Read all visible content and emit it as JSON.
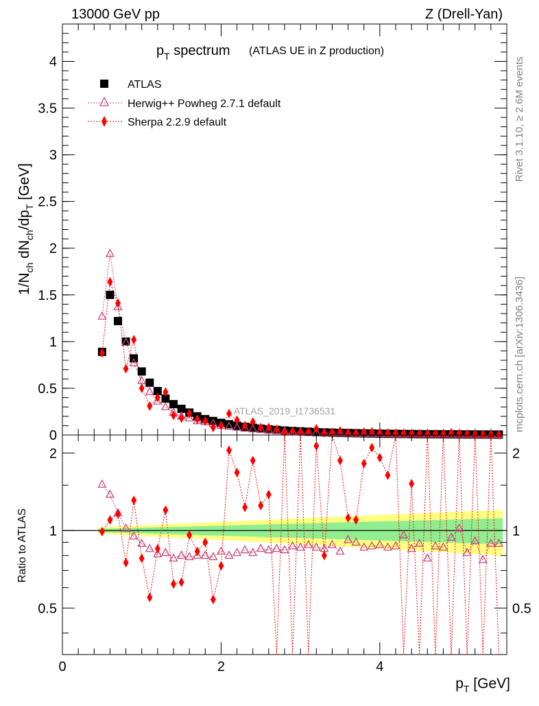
{
  "header": {
    "left": "13000 GeV pp",
    "right": "Z (Drell-Yan)"
  },
  "side_labels": {
    "rivet": "Rivet 3.1.10, ≥ 2.6M events",
    "mcplots": "mcplots.cern.ch [arXiv:1306.3436]"
  },
  "chart_data": [
    {
      "type": "scatter",
      "title_main": "p",
      "title_main_sub": "T",
      "title_main_rest": " spectrum",
      "title_paren": "(ATLAS UE in Z production)",
      "ylabel": "1/Nch dNch/dpT [GeV]",
      "ylim": [
        0,
        4.4
      ],
      "xlim": [
        0,
        5.6
      ],
      "yticks": [
        "0",
        "0.5",
        "1",
        "1.5",
        "2",
        "2.5",
        "3",
        "3.5",
        "4"
      ],
      "analysis_label": "ATLAS_2019_I1736531",
      "legend": [
        {
          "name": "ATLAS",
          "color": "#000000",
          "marker": "square"
        },
        {
          "name": "Herwig++ Powheg 2.7.1 default",
          "color": "#c8477a",
          "marker": "triangle"
        },
        {
          "name": "Sherpa 2.2.9 default",
          "color": "#ff0000",
          "marker": "diamond"
        }
      ],
      "x": [
        0.5,
        0.6,
        0.7,
        0.8,
        0.9,
        1.0,
        1.1,
        1.2,
        1.3,
        1.4,
        1.5,
        1.6,
        1.7,
        1.8,
        1.9,
        2.0,
        2.1,
        2.2,
        2.3,
        2.4,
        2.5,
        2.6,
        2.7,
        2.8,
        2.9,
        3.0,
        3.1,
        3.2,
        3.3,
        3.4,
        3.5,
        3.6,
        3.7,
        3.8,
        3.9,
        4.0,
        4.1,
        4.2,
        4.3,
        4.4,
        4.5,
        4.6,
        4.7,
        4.8,
        4.9,
        5.0,
        5.1,
        5.2,
        5.3,
        5.4,
        5.5
      ],
      "series": [
        {
          "name": "ATLAS",
          "values": [
            0.89,
            1.5,
            1.22,
            1.0,
            0.82,
            0.68,
            0.56,
            0.47,
            0.39,
            0.33,
            0.28,
            0.24,
            0.2,
            0.17,
            0.15,
            0.13,
            0.115,
            0.1,
            0.088,
            0.077,
            0.068,
            0.06,
            0.054,
            0.048,
            0.043,
            0.039,
            0.035,
            0.031,
            0.028,
            0.025,
            0.023,
            0.021,
            0.019,
            0.017,
            0.016,
            0.014,
            0.013,
            0.012,
            0.011,
            0.01,
            0.009,
            0.0085,
            0.008,
            0.0075,
            0.007,
            0.0065,
            0.006,
            0.0057,
            0.0054,
            0.0051,
            0.0048
          ]
        },
        {
          "name": "Herwig++ Powheg 2.7.1 default",
          "values": [
            1.27,
            1.94,
            1.37,
            0.99,
            0.77,
            0.58,
            0.46,
            0.36,
            0.3,
            0.24,
            0.2,
            0.18,
            0.15,
            0.14,
            0.12,
            0.1,
            0.09,
            0.08,
            0.07,
            0.063,
            0.057,
            0.05,
            0.045,
            0.04,
            0.037,
            0.034,
            0.03,
            0.027,
            0.024,
            0.022,
            0.02,
            0.019,
            0.017,
            0.015,
            0.014,
            0.012,
            0.011,
            0.01,
            0.0095,
            0.009,
            0.008,
            0.007,
            0.007,
            0.0066,
            0.006,
            0.006,
            0.005,
            0.005,
            0.0048,
            0.0046,
            0.0043
          ]
        },
        {
          "name": "Sherpa 2.2.9 default",
          "values": [
            0.88,
            1.64,
            1.41,
            0.71,
            1.02,
            0.5,
            0.31,
            0.4,
            0.46,
            0.21,
            0.18,
            0.23,
            0.17,
            0.15,
            0.08,
            0.1,
            0.23,
            0.16,
            0.1,
            0.14,
            0.08,
            0.08,
            0.06,
            0.03,
            0.04,
            0.03,
            0.035,
            0.066,
            0.022,
            0.03,
            0.042,
            0.024,
            0.021,
            0.031,
            0.034,
            0.027,
            0.021,
            0.019,
            0.018,
            0.016,
            0.015,
            0.014,
            0.013,
            0.012,
            0.024,
            0.017,
            0.011,
            0.006,
            0.005,
            0.005,
            0.004
          ]
        }
      ]
    },
    {
      "type": "scatter",
      "ylabel": "Ratio to ATLAS",
      "xlabel": "pT [GeV]",
      "ylim": [
        0.33,
        2.35
      ],
      "xlim": [
        0,
        5.6
      ],
      "yticks": [
        "0.5",
        "1",
        "2"
      ],
      "xticks": [
        "0",
        "2",
        "4"
      ],
      "x": [
        0.5,
        0.6,
        0.7,
        0.8,
        0.9,
        1.0,
        1.1,
        1.2,
        1.3,
        1.4,
        1.5,
        1.6,
        1.7,
        1.8,
        1.9,
        2.0,
        2.1,
        2.2,
        2.3,
        2.4,
        2.5,
        2.6,
        2.7,
        2.8,
        2.9,
        3.0,
        3.1,
        3.2,
        3.3,
        3.4,
        3.5,
        3.6,
        3.7,
        3.8,
        3.9,
        4.0,
        4.1,
        4.2,
        4.3,
        4.4,
        4.5,
        4.6,
        4.7,
        4.8,
        4.9,
        5.0,
        5.1,
        5.2,
        5.3,
        5.4,
        5.5
      ],
      "series": [
        {
          "name": "Herwig++ Powheg 2.7.1 default",
          "values": [
            1.51,
            1.38,
            1.17,
            1.02,
            0.95,
            0.89,
            0.85,
            0.81,
            0.82,
            0.78,
            0.8,
            0.79,
            0.8,
            0.8,
            0.79,
            0.83,
            0.8,
            0.82,
            0.84,
            0.82,
            0.85,
            0.84,
            0.85,
            0.84,
            0.87,
            0.86,
            0.88,
            0.86,
            0.85,
            0.88,
            0.83,
            0.92,
            0.9,
            0.86,
            0.87,
            0.88,
            0.86,
            0.87,
            0.96,
            0.85,
            0.89,
            0.78,
            0.87,
            0.86,
            0.94,
            1.02,
            0.82,
            0.91,
            0.77,
            0.89,
            0.89
          ]
        },
        {
          "name": "Sherpa 2.2.9 default",
          "values": [
            0.99,
            1.1,
            1.16,
            0.75,
            1.31,
            0.78,
            0.55,
            0.85,
            1.2,
            0.62,
            0.63,
            0.96,
            0.83,
            0.9,
            0.54,
            0.73,
            2.05,
            1.68,
            1.23,
            1.87,
            1.25,
            1.38,
            null,
            null,
            null,
            null,
            null,
            2.13,
            0.8,
            null,
            1.87,
            1.12,
            1.1,
            1.82,
            2.1,
            1.92,
            1.64,
            null,
            null,
            1.52,
            null,
            null,
            null,
            null,
            null,
            null,
            null,
            null,
            null,
            null,
            null
          ]
        }
      ]
    }
  ]
}
